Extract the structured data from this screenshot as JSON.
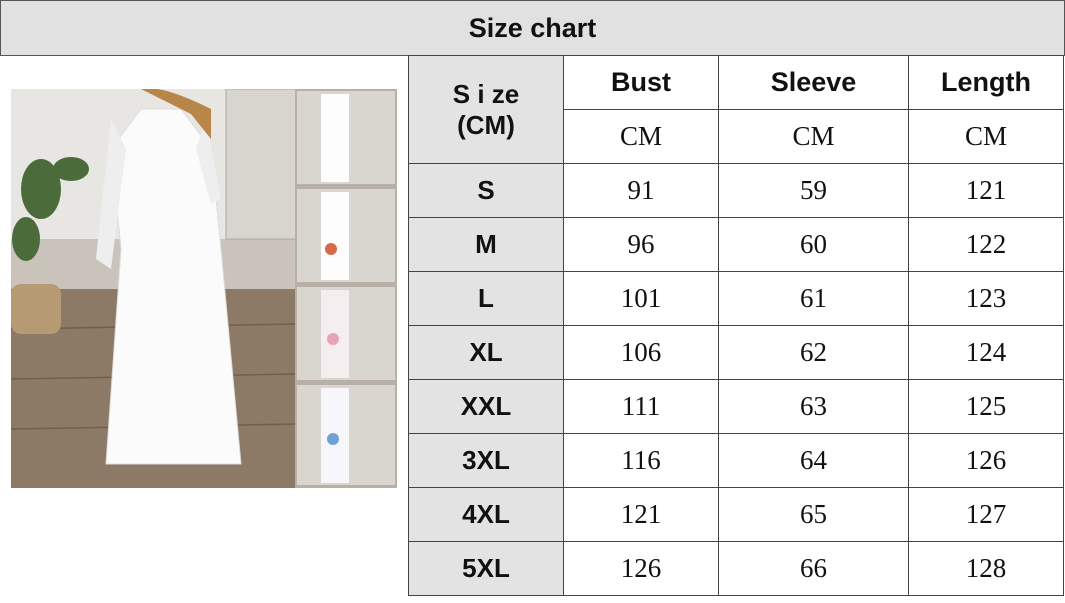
{
  "title": "Size chart",
  "table": {
    "size_header": [
      "S i ze",
      "(CM)"
    ],
    "columns": [
      "Bust",
      "Sleeve",
      "Length"
    ],
    "units": [
      "CM",
      "CM",
      "CM"
    ],
    "rows": [
      {
        "size": "S",
        "values": [
          "91",
          "59",
          "121"
        ]
      },
      {
        "size": "M",
        "values": [
          "96",
          "60",
          "122"
        ]
      },
      {
        "size": "L",
        "values": [
          "101",
          "61",
          "123"
        ]
      },
      {
        "size": "XL",
        "values": [
          "106",
          "62",
          "124"
        ]
      },
      {
        "size": "XXL",
        "values": [
          "111",
          "63",
          "125"
        ]
      },
      {
        "size": "3XL",
        "values": [
          "116",
          "64",
          "126"
        ]
      },
      {
        "size": "4XL",
        "values": [
          "121",
          "65",
          "127"
        ]
      },
      {
        "size": "5XL",
        "values": [
          "126",
          "66",
          "128"
        ]
      }
    ]
  },
  "colors": {
    "header_bg": "#e1e1e1",
    "size_col_bg": "#e3e3e3",
    "border": "#444444"
  }
}
